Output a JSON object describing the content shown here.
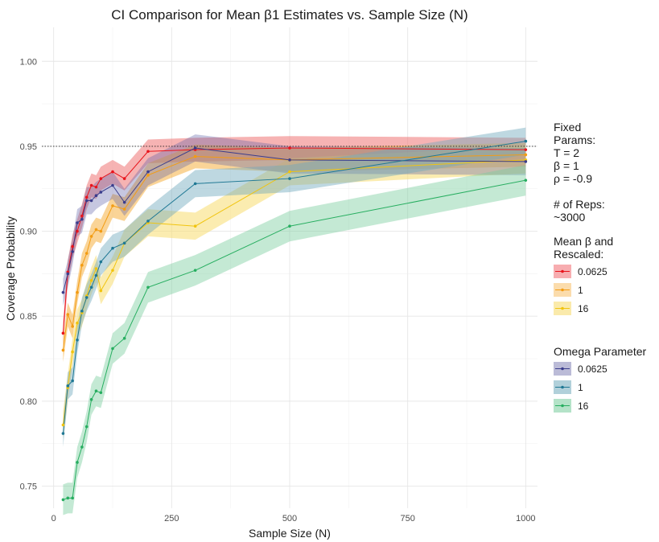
{
  "chart_data": {
    "type": "line",
    "title": "CI Comparison for Mean β1 Estimates vs. Sample Size (N)",
    "xlabel": "Sample Size (N)",
    "ylabel": "Coverage Probability",
    "xlim": [
      -25,
      1025
    ],
    "ylim": [
      0.737,
      1.02
    ],
    "x_ticks": [
      0,
      250,
      500,
      750,
      1000
    ],
    "x_tick_labels": [
      "0",
      "250",
      "500",
      "750",
      "1000"
    ],
    "y_ticks": [
      0.75,
      0.8,
      0.85,
      0.9,
      0.95,
      1.0
    ],
    "y_tick_labels": [
      "0.75",
      "0.80",
      "0.85",
      "0.90",
      "0.95",
      "1.00"
    ],
    "reference_line": 0.95,
    "grid": true,
    "legend_position": "right",
    "annotation_lines": [
      "Fixed",
      "Params:",
      "T = 2",
      "β = 1",
      "ρ = -0.9",
      "",
      "# of Reps:",
      "~3000"
    ],
    "legend_groups": [
      {
        "title_lines": [
          "Mean β and",
          "Rescaled:"
        ],
        "labels": [
          "0.0625",
          "1",
          "16"
        ],
        "colors": [
          "#e8141c",
          "#f39c12",
          "#f1c40f"
        ]
      },
      {
        "title_lines": [
          "Omega Parameter"
        ],
        "labels": [
          "0.0625",
          "1",
          "16"
        ],
        "colors": [
          "#3b3d8c",
          "#1f7894",
          "#27ae60"
        ]
      }
    ],
    "x": [
      20,
      30,
      40,
      50,
      60,
      70,
      80,
      90,
      100,
      125,
      150,
      200,
      300,
      500,
      1000
    ],
    "series": [
      {
        "group": "mean",
        "label": "0.0625",
        "color": "#e8141c",
        "band_color": "#f08080",
        "band_opacity": 0.6,
        "band_half_width": 0.007,
        "values": [
          0.84,
          0.876,
          0.891,
          0.9,
          0.909,
          0.92,
          0.927,
          0.926,
          0.931,
          0.935,
          0.931,
          0.947,
          0.948,
          0.949,
          0.948
        ]
      },
      {
        "group": "mean",
        "label": "1",
        "color": "#f39c12",
        "band_color": "#f5b041",
        "band_opacity": 0.55,
        "band_half_width": 0.007,
        "values": [
          0.83,
          0.851,
          0.844,
          0.864,
          0.88,
          0.887,
          0.897,
          0.901,
          0.9,
          0.915,
          0.913,
          0.933,
          0.944,
          0.942,
          0.945
        ]
      },
      {
        "group": "mean",
        "label": "16",
        "color": "#f1c40f",
        "band_color": "#f7dc6f",
        "band_opacity": 0.55,
        "band_half_width": 0.008,
        "values": [
          0.786,
          0.808,
          0.829,
          0.846,
          0.852,
          0.862,
          0.871,
          0.878,
          0.865,
          0.877,
          0.893,
          0.905,
          0.903,
          0.935,
          0.942
        ]
      },
      {
        "group": "omega",
        "label": "0.0625",
        "color": "#3b3d8c",
        "band_color": "#5b5ea6",
        "band_opacity": 0.35,
        "band_half_width": 0.008,
        "values": [
          0.864,
          0.875,
          0.888,
          0.905,
          0.907,
          0.918,
          0.918,
          0.921,
          0.923,
          0.927,
          0.917,
          0.935,
          0.949,
          0.942,
          0.941
        ]
      },
      {
        "group": "omega",
        "label": "1",
        "color": "#1f7894",
        "band_color": "#6fa8bc",
        "band_opacity": 0.45,
        "band_half_width": 0.008,
        "values": [
          0.781,
          0.809,
          0.812,
          0.836,
          0.853,
          0.861,
          0.867,
          0.874,
          0.882,
          0.89,
          0.893,
          0.906,
          0.928,
          0.931,
          0.953
        ]
      },
      {
        "group": "omega",
        "label": "16",
        "color": "#27ae60",
        "band_color": "#7dcea0",
        "band_opacity": 0.45,
        "band_half_width": 0.009,
        "values": [
          0.742,
          0.743,
          0.743,
          0.764,
          0.773,
          0.785,
          0.801,
          0.806,
          0.805,
          0.831,
          0.837,
          0.867,
          0.877,
          0.903,
          0.93
        ]
      }
    ]
  }
}
